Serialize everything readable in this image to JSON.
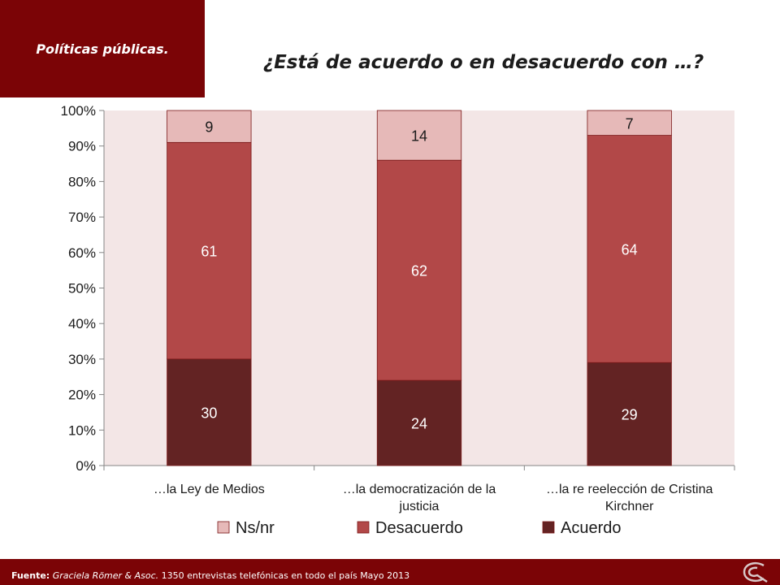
{
  "header": {
    "section_label": "Políticas públicas.",
    "title": "¿Está de acuerdo o en desacuerdo con …?"
  },
  "chart_data": {
    "type": "bar",
    "stacked": true,
    "categories": [
      [
        "…la Ley de Medios"
      ],
      [
        "…la democratización de la",
        "justicia"
      ],
      [
        "…la re reelección de Cristina",
        "Kirchner"
      ]
    ],
    "series": [
      {
        "name": "Acuerdo",
        "values": [
          30,
          24,
          29
        ],
        "color": "#632323",
        "label_color": "#ffffff"
      },
      {
        "name": "Desacuerdo",
        "values": [
          61,
          62,
          64
        ],
        "color": "#b24848",
        "label_color": "#ffffff"
      },
      {
        "name": "Ns/nr",
        "values": [
          9,
          14,
          7
        ],
        "color": "#e6b9b8",
        "label_color": "#1a1a1a"
      }
    ],
    "legend_order": [
      "Ns/nr",
      "Desacuerdo",
      "Acuerdo"
    ],
    "legend_position": "bottom",
    "y_ticks": [
      "0%",
      "10%",
      "20%",
      "30%",
      "40%",
      "50%",
      "60%",
      "70%",
      "80%",
      "90%",
      "100%"
    ],
    "ylim": [
      0,
      100
    ],
    "grid": false,
    "plot_background": "#f3e6e6"
  },
  "footer": {
    "source_label": "Fuente:",
    "source_name": "Graciela Römer & Asoc.",
    "source_detail": " 1350 entrevistas telefónicas en todo el país  Mayo 2013"
  },
  "colors": {
    "brand": "#7b0406",
    "plot_background": "#f3e6e6"
  },
  "icons": {
    "footer_logo": "gra-logo-icon"
  }
}
